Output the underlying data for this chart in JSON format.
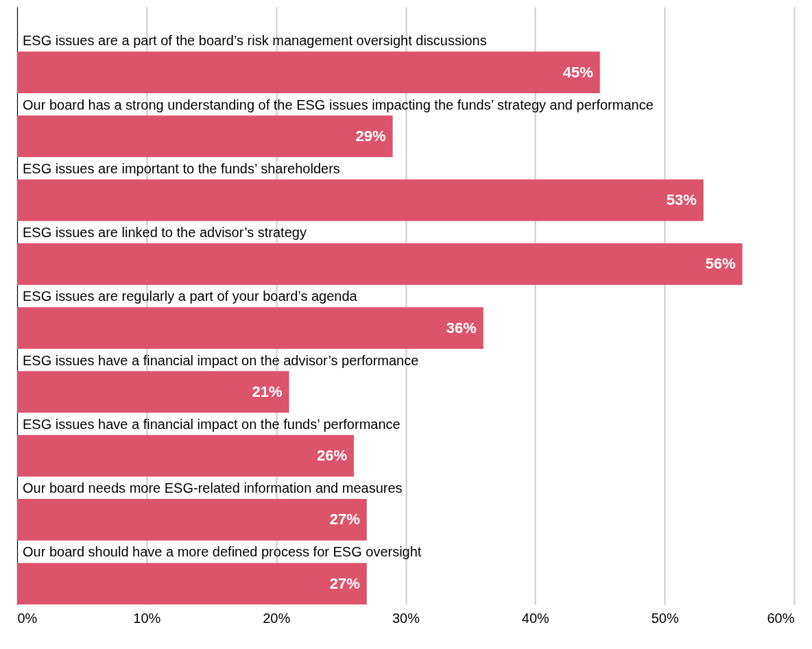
{
  "chart_data": {
    "type": "bar",
    "orientation": "horizontal",
    "categories": [
      "ESG issues are a part of the board’s risk management oversight discussions",
      "Our board has a strong understanding of the ESG issues impacting the funds’ strategy and performance",
      "ESG issues are important to the funds’ shareholders",
      "ESG issues are linked to the advisor’s strategy",
      "ESG issues are regularly a part of your board’s agenda",
      "ESG issues have a financial impact on the advisor’s performance",
      "ESG issues have a financial impact on the funds’ performance",
      "Our board needs more ESG-related information and measures",
      "Our board should have a more defined process for ESG oversight"
    ],
    "values": [
      45,
      29,
      53,
      56,
      36,
      21,
      26,
      27,
      27
    ],
    "value_labels": [
      "45%",
      "29%",
      "53%",
      "56%",
      "36%",
      "21%",
      "26%",
      "27%",
      "27%"
    ],
    "color": "#dc546b",
    "xlim": [
      0,
      60
    ],
    "xticks": [
      {
        "value": 0,
        "label": "0%"
      },
      {
        "value": 10,
        "label": "10%"
      },
      {
        "value": 20,
        "label": "20%"
      },
      {
        "value": 30,
        "label": "30%"
      },
      {
        "value": 40,
        "label": "40%"
      },
      {
        "value": 50,
        "label": "50%"
      },
      {
        "value": 60,
        "label": "60%"
      }
    ],
    "grid": "x",
    "tick_labels": "x"
  }
}
